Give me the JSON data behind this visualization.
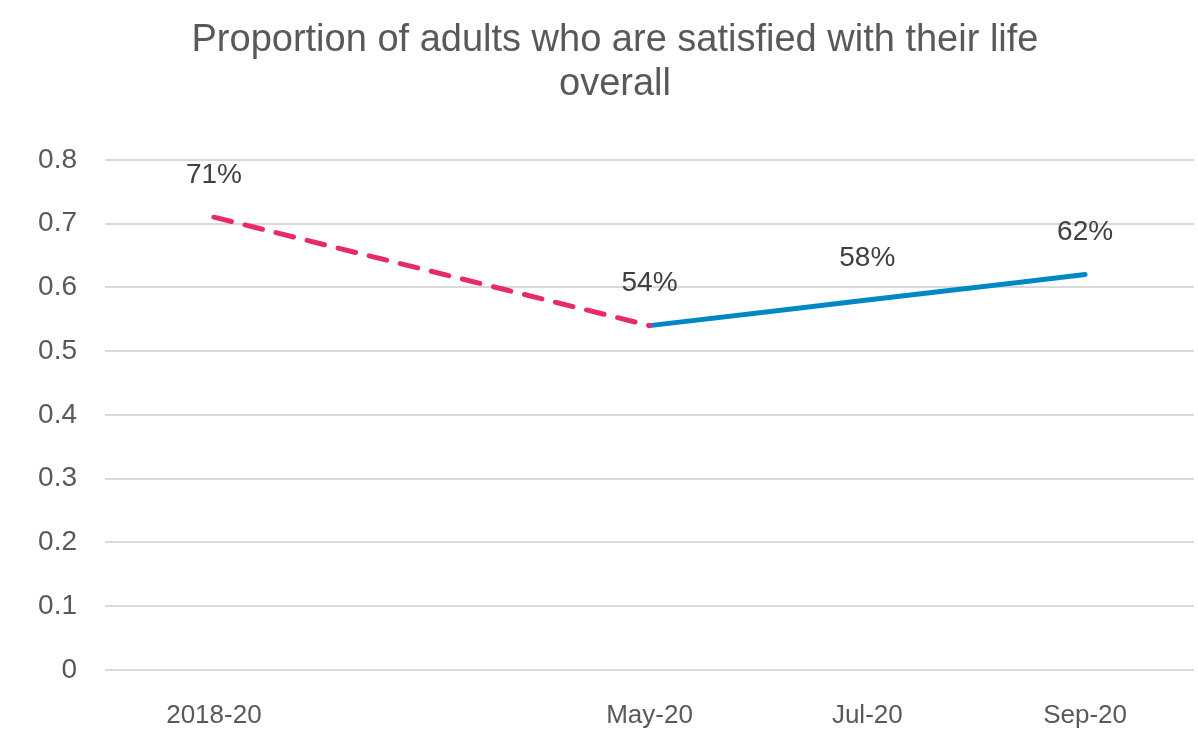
{
  "chart_data": {
    "type": "line",
    "title": "Proportion of adults who are satisfied with their life overall",
    "categories": [
      "2018-20",
      null,
      "May-20",
      "Jul-20",
      "Sep-20"
    ],
    "series": [
      {
        "color": "#e8296e",
        "line_style": "dashed",
        "values": [
          0.71,
          null,
          0.54,
          null,
          null
        ],
        "value_labels": [
          "71%",
          null,
          null,
          null,
          null
        ]
      },
      {
        "color": "#0088c4",
        "line_style": "solid",
        "values": [
          null,
          null,
          0.54,
          0.58,
          0.62
        ],
        "value_labels": [
          null,
          null,
          "54%",
          "58%",
          "62%"
        ]
      }
    ],
    "ylim": [
      0,
      0.8
    ],
    "yticks": [
      0,
      0.1,
      0.2,
      0.3,
      0.4,
      0.5,
      0.6,
      0.7,
      0.8
    ],
    "grid": "y"
  }
}
